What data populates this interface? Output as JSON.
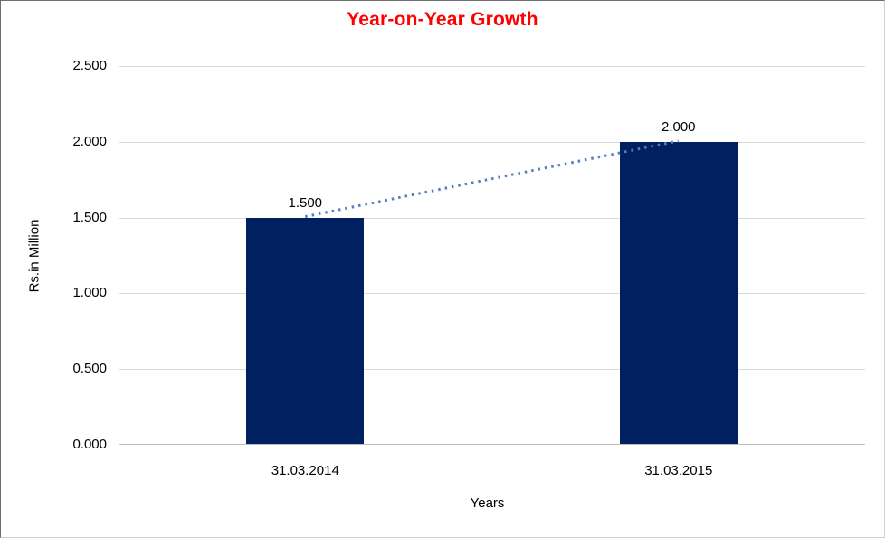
{
  "chart_data": {
    "type": "bar",
    "title": "Year-on-Year Growth",
    "title_color": "#ff0000",
    "categories": [
      "31.03.2014",
      "31.03.2015"
    ],
    "values": [
      1.5,
      2.0
    ],
    "value_labels": [
      "1.500",
      "2.000"
    ],
    "xlabel": "Years",
    "ylabel": "Rs.in Million",
    "ylim": [
      0,
      2.5
    ],
    "ytick_step": 0.5,
    "ytick_labels": [
      "0.000",
      "0.500",
      "1.000",
      "1.500",
      "2.000",
      "2.500"
    ],
    "grid": "horizontal",
    "legend": "none",
    "bar_color": "#002060",
    "gridline_color": "#d9d9d9",
    "axis_line_color": "#bfbfbf",
    "text_color": "#000000",
    "trendline": {
      "style": "dotted",
      "color": "#4f81bd",
      "from_value": 1.5,
      "to_value": 2.0
    }
  },
  "layout_note": ""
}
